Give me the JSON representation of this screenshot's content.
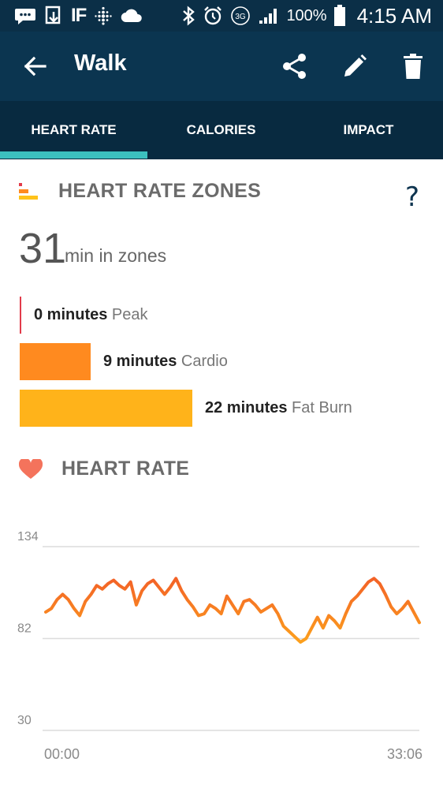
{
  "status_bar": {
    "left_icons": [
      "messages-icon",
      "download-icon",
      "ifttt-icon",
      "fitbit-icon",
      "cloud-icon"
    ],
    "carrier_text": "IF",
    "right_icons": [
      "bluetooth-icon",
      "alarm-icon",
      "3g-icon",
      "signal-icon"
    ],
    "network": "3G",
    "battery": "100%",
    "time": "4:15 AM"
  },
  "app_bar": {
    "title": "Walk",
    "actions": [
      "share-icon",
      "edit-icon",
      "delete-icon"
    ]
  },
  "tabs": [
    {
      "label": "HEART RATE",
      "active": true
    },
    {
      "label": "CALORIES",
      "active": false
    },
    {
      "label": "IMPACT",
      "active": false
    }
  ],
  "zones": {
    "title": "HEART RATE ZONES",
    "help": "?",
    "total_minutes": "31",
    "total_unit": "min in zones",
    "items": [
      {
        "minutes": "0 minutes",
        "name": "Peak",
        "value": 0,
        "color": "#e23b4a"
      },
      {
        "minutes": "9 minutes",
        "name": "Cardio",
        "value": 9,
        "color": "#ff8a1f"
      },
      {
        "minutes": "22 minutes",
        "name": "Fat Burn",
        "value": 22,
        "color": "#ffb31a"
      }
    ]
  },
  "heart_rate": {
    "title": "HEART RATE",
    "icon": "heart-icon",
    "icon_color": "#f4735c"
  },
  "colors": {
    "app_bar": "#0b3550",
    "tab_bar": "#082a40",
    "tab_indicator": "#3cc0bf",
    "line_high": "#f0502a",
    "line_low": "#ffb01a"
  },
  "chart_data": {
    "type": "line",
    "title": "",
    "xlabel": "",
    "ylabel": "",
    "x_tick_labels": [
      "00:00",
      "33:06"
    ],
    "y_ticks": [
      30,
      82,
      134
    ],
    "ylim": [
      30,
      134
    ],
    "grid": true,
    "series": [
      {
        "values": [
          97,
          99,
          104,
          107,
          104,
          99,
          95,
          103,
          107,
          112,
          110,
          113,
          115,
          112,
          110,
          114,
          101,
          109,
          113,
          115,
          111,
          107,
          111,
          116,
          109,
          104,
          100,
          95,
          96,
          101,
          99,
          96,
          106,
          101,
          96,
          103,
          104,
          101,
          97,
          99,
          101,
          96,
          89,
          86,
          83,
          80,
          82,
          88,
          94,
          88,
          95,
          92,
          88,
          96,
          103,
          106,
          110,
          114,
          116,
          113,
          107,
          100,
          96,
          99,
          103,
          97,
          91
        ]
      }
    ]
  }
}
